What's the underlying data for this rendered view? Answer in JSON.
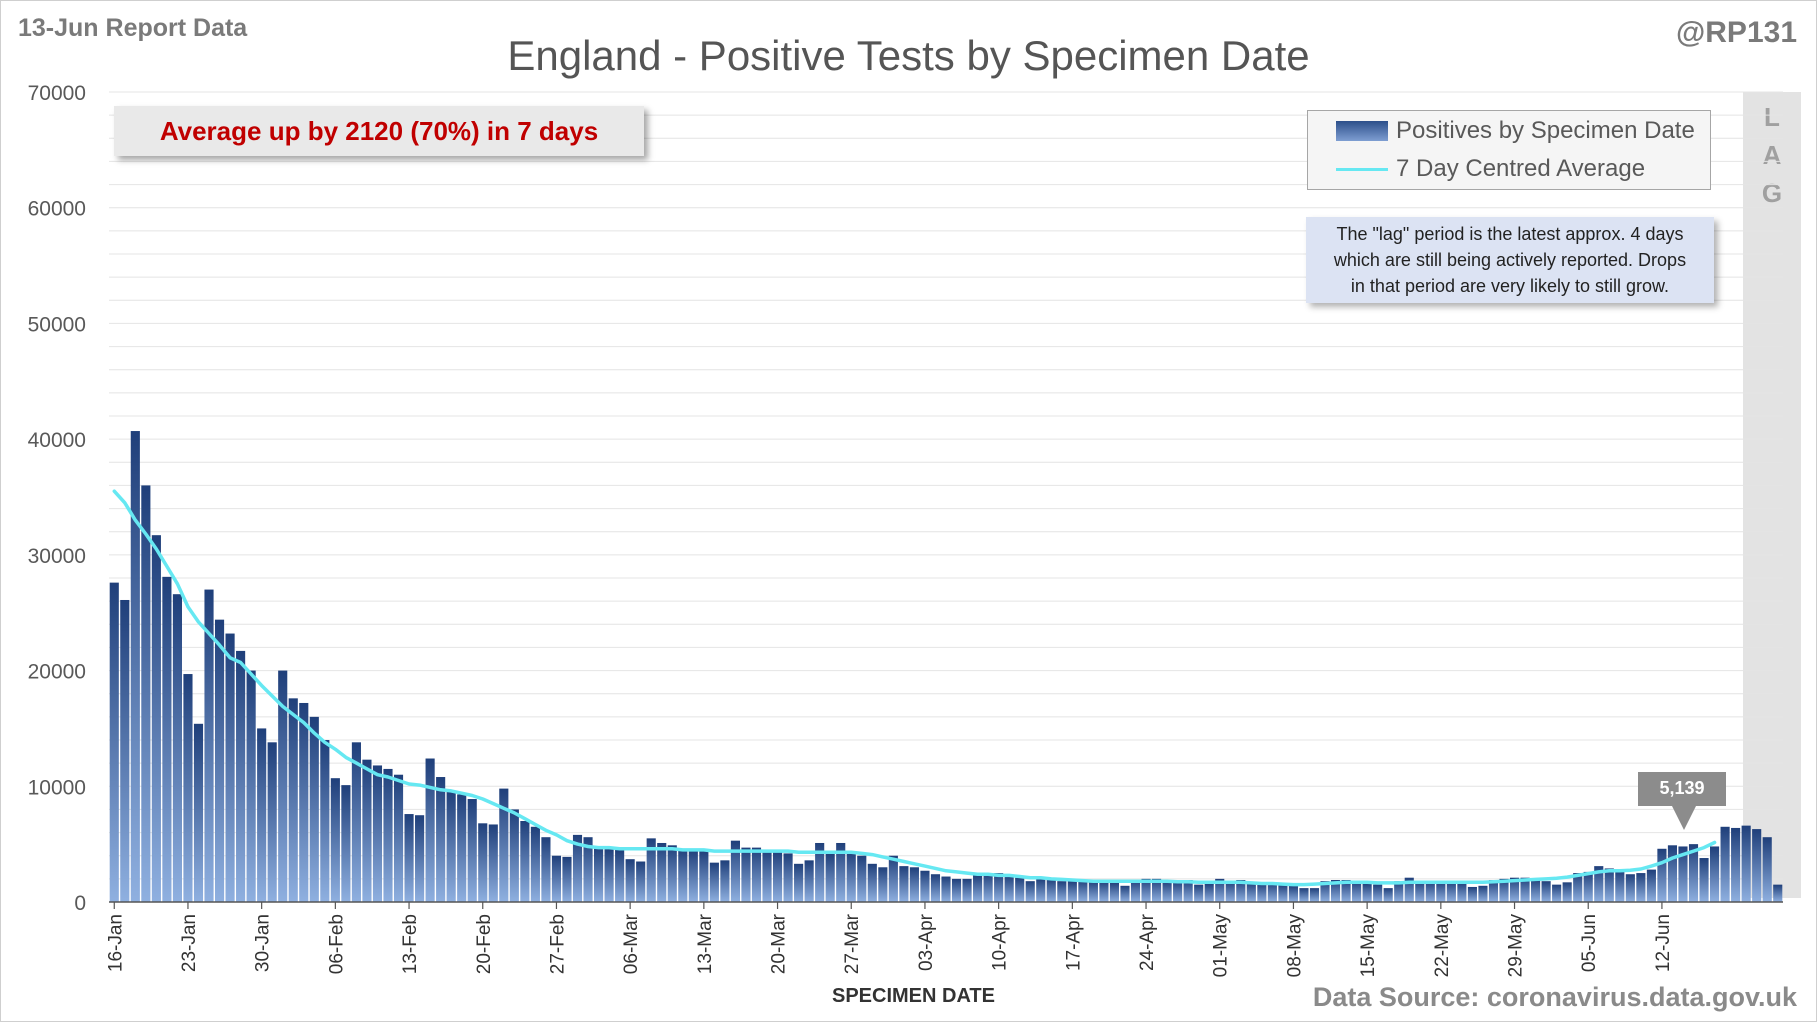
{
  "header": {
    "report_label": "13-Jun Report Data",
    "title": "England - Positive Tests by Specimen Date",
    "handle": "@RP131"
  },
  "callout": {
    "text": "Average up by 2120 (70%) in 7 days",
    "color": "#c00000"
  },
  "legend": {
    "bars_label": "Positives by Specimen Date",
    "line_label": "7 Day Centred Average"
  },
  "note": {
    "line1": "The \"lag\" period is the latest approx. 4 days",
    "line2": "which are still being actively reported.  Drops",
    "line3": "in that period are very likely to still grow."
  },
  "lag": {
    "letters": [
      "L",
      "A",
      "G"
    ]
  },
  "value_callout": "5,139",
  "footer": {
    "xaxis_title": "SPECIMEN DATE",
    "source": "Data Source: coronavirus.data.gov.uk"
  },
  "colors": {
    "bar_top": "#1f3f7a",
    "bar_bottom": "#8fb0e0",
    "avg_line": "#66e8f2",
    "grid": "#e4e4e4"
  },
  "chart_data": {
    "type": "bar",
    "title": "England - Positive Tests by Specimen Date",
    "xlabel": "SPECIMEN DATE",
    "ylabel": "",
    "ylim": [
      0,
      70000
    ],
    "yticks": [
      0,
      10000,
      20000,
      30000,
      40000,
      50000,
      60000,
      70000
    ],
    "grid": true,
    "legend_position": "top-right",
    "x_start": "16-Jan",
    "x_end": "12-Jun",
    "xtick_labels": [
      "16-Jan",
      "23-Jan",
      "30-Jan",
      "06-Feb",
      "13-Feb",
      "20-Feb",
      "27-Feb",
      "06-Mar",
      "13-Mar",
      "20-Mar",
      "27-Mar",
      "03-Apr",
      "10-Apr",
      "17-Apr",
      "24-Apr",
      "01-May",
      "08-May",
      "15-May",
      "22-May",
      "29-May",
      "05-Jun",
      "12-Jun"
    ],
    "series": [
      {
        "name": "Positives by Specimen Date",
        "type": "bar",
        "values": [
          27600,
          26100,
          40700,
          36000,
          31700,
          28100,
          26600,
          19700,
          15400,
          27000,
          24400,
          23200,
          21700,
          20000,
          15000,
          13800,
          20000,
          17600,
          17200,
          16000,
          14000,
          10700,
          10100,
          13800,
          12300,
          11800,
          11500,
          11000,
          7600,
          7500,
          12400,
          10800,
          9600,
          9300,
          8900,
          6800,
          6700,
          9800,
          8000,
          7000,
          6500,
          5600,
          4000,
          3900,
          5800,
          5600,
          4800,
          4600,
          4500,
          3700,
          3500,
          5500,
          5100,
          4900,
          4600,
          4500,
          4400,
          3400,
          3600,
          5300,
          4700,
          4700,
          4500,
          4400,
          4200,
          3300,
          3600,
          5100,
          4200,
          5100,
          4400,
          4000,
          3300,
          3000,
          4000,
          3100,
          3000,
          2700,
          2400,
          2200,
          2000,
          2000,
          2300,
          2500,
          2500,
          2300,
          2100,
          1800,
          2000,
          2000,
          1800,
          1800,
          1900,
          1800,
          1800,
          1700,
          1400,
          1900,
          2000,
          2000,
          1800,
          1800,
          1900,
          1500,
          1600,
          2000,
          1800,
          1900,
          1700,
          1600,
          1700,
          1500,
          1400,
          1200,
          1200,
          1800,
          1900,
          1900,
          1800,
          1600,
          1500,
          1200,
          1800,
          2100,
          1800,
          1800,
          1800,
          1800,
          1700,
          1300,
          1400,
          1900,
          2000,
          2100,
          2100,
          2000,
          1800,
          1500,
          1700,
          2500,
          2600,
          3100,
          2900,
          2700,
          2400,
          2500,
          2800,
          4600,
          4900,
          4800,
          5000,
          3800,
          4800,
          6500,
          6400,
          6600,
          6300,
          5600,
          1500
        ]
      },
      {
        "name": "7 Day Centred Average",
        "type": "line",
        "values": [
          35500,
          34500,
          33000,
          31800,
          30500,
          29000,
          27500,
          25500,
          24200,
          23200,
          22200,
          21100,
          20700,
          19700,
          18700,
          17800,
          16900,
          16200,
          15500,
          14600,
          13800,
          13200,
          12500,
          12000,
          11500,
          11000,
          10800,
          10500,
          10200,
          10100,
          9900,
          9700,
          9600,
          9400,
          9200,
          8900,
          8500,
          8100,
          7700,
          7200,
          6700,
          6200,
          5800,
          5300,
          5000,
          4800,
          4700,
          4700,
          4600,
          4600,
          4600,
          4600,
          4600,
          4600,
          4500,
          4500,
          4500,
          4400,
          4400,
          4400,
          4400,
          4400,
          4400,
          4400,
          4400,
          4300,
          4300,
          4300,
          4300,
          4300,
          4300,
          4200,
          4100,
          3900,
          3700,
          3500,
          3300,
          3100,
          2900,
          2700,
          2600,
          2500,
          2400,
          2400,
          2300,
          2300,
          2200,
          2100,
          2100,
          2000,
          1950,
          1900,
          1850,
          1800,
          1800,
          1800,
          1800,
          1800,
          1800,
          1800,
          1800,
          1750,
          1750,
          1700,
          1700,
          1700,
          1700,
          1700,
          1650,
          1600,
          1600,
          1550,
          1500,
          1500,
          1550,
          1600,
          1650,
          1700,
          1700,
          1700,
          1650,
          1650,
          1650,
          1700,
          1700,
          1700,
          1700,
          1700,
          1700,
          1700,
          1700,
          1750,
          1800,
          1850,
          1900,
          1950,
          2000,
          2050,
          2150,
          2300,
          2450,
          2600,
          2700,
          2700,
          2750,
          2850,
          3100,
          3400,
          3800,
          4100,
          4400,
          4700,
          5139
        ]
      }
    ],
    "annotations": [
      "Average up by 2120 (70%) in 7 days",
      "5,139"
    ]
  }
}
